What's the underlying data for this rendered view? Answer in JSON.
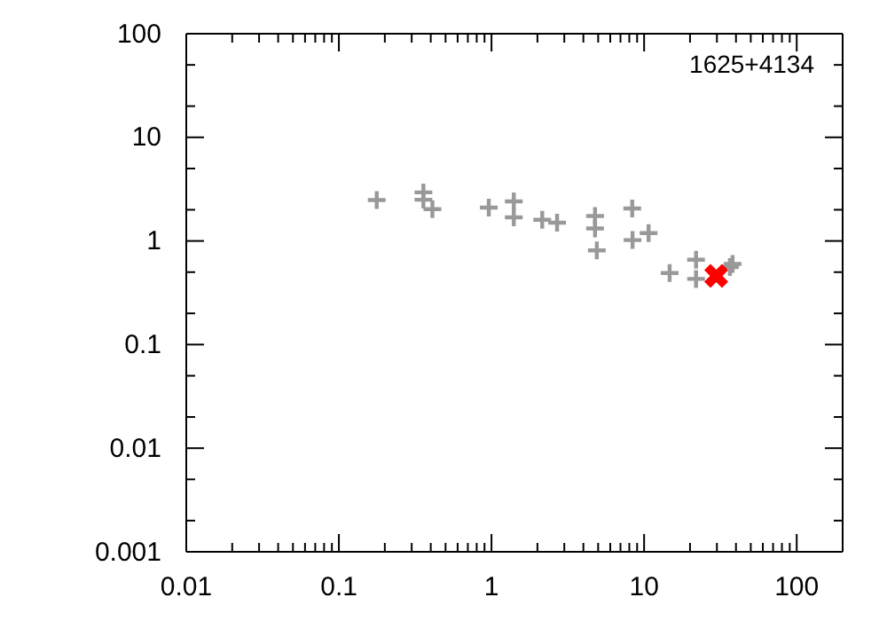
{
  "chart_data": {
    "type": "scatter",
    "log": "xy",
    "xlim": [
      0.01,
      200
    ],
    "ylim": [
      0.001,
      100
    ],
    "xticks": [
      0.01,
      {
        "value": 0.02,
        "label": null
      },
      {
        "value": 0.03,
        "label": null
      },
      {
        "value": 0.04,
        "label": null
      },
      {
        "value": 0.05,
        "label": null
      },
      {
        "value": 0.06,
        "label": null
      },
      {
        "value": 0.07,
        "label": null
      },
      {
        "value": 0.08,
        "label": null
      },
      {
        "value": 0.09,
        "label": null
      },
      0.1,
      {
        "value": 0.2,
        "label": null
      },
      {
        "value": 0.3,
        "label": null
      },
      {
        "value": 0.4,
        "label": null
      },
      {
        "value": 0.5,
        "label": null
      },
      {
        "value": 0.6,
        "label": null
      },
      {
        "value": 0.7,
        "label": null
      },
      {
        "value": 0.8,
        "label": null
      },
      {
        "value": 0.9,
        "label": null
      },
      1,
      {
        "value": 2,
        "label": null
      },
      {
        "value": 3,
        "label": null
      },
      {
        "value": 4,
        "label": null
      },
      {
        "value": 5,
        "label": null
      },
      {
        "value": 6,
        "label": null
      },
      {
        "value": 7,
        "label": null
      },
      {
        "value": 8,
        "label": null
      },
      {
        "value": 9,
        "label": null
      },
      10,
      {
        "value": 20,
        "label": null
      },
      {
        "value": 30,
        "label": null
      },
      {
        "value": 40,
        "label": null
      },
      {
        "value": 50,
        "label": null
      },
      {
        "value": 60,
        "label": null
      },
      {
        "value": 70,
        "label": null
      },
      {
        "value": 80,
        "label": null
      },
      {
        "value": 90,
        "label": null
      },
      100,
      {
        "value": 200,
        "label": null
      }
    ],
    "yticks": [
      0.001,
      {
        "value": 0.002,
        "label": null
      },
      {
        "value": 0.005,
        "label": null
      },
      0.01,
      {
        "value": 0.02,
        "label": null
      },
      {
        "value": 0.05,
        "label": null
      },
      0.1,
      {
        "value": 0.2,
        "label": null
      },
      {
        "value": 0.5,
        "label": null
      },
      1,
      {
        "value": 2,
        "label": null
      },
      {
        "value": 5,
        "label": null
      },
      10,
      {
        "value": 20,
        "label": null
      },
      {
        "value": 50,
        "label": null
      },
      100
    ],
    "grid": false,
    "annotations": [
      "1625+4134"
    ],
    "series": [
      {
        "color": "#999999",
        "marker": "cross",
        "x": [
          0.177,
          0.358,
          0.358,
          0.41,
          0.96,
          1.4,
          1.4,
          2.15,
          2.69,
          4.77,
          4.77,
          4.9,
          8.36,
          8.4,
          10.7,
          14.7,
          21.9,
          21.9,
          36.5,
          38
        ],
        "values": [
          2.48,
          2.94,
          2.5,
          2.03,
          2.1,
          2.41,
          1.69,
          1.6,
          1.5,
          1.74,
          1.32,
          0.81,
          2.06,
          1.02,
          1.19,
          0.49,
          0.66,
          0.43,
          0.56,
          0.6
        ]
      },
      {
        "color": "#ff0000",
        "marker": "x",
        "x": [
          29.7
        ],
        "values": [
          0.46
        ]
      }
    ]
  }
}
